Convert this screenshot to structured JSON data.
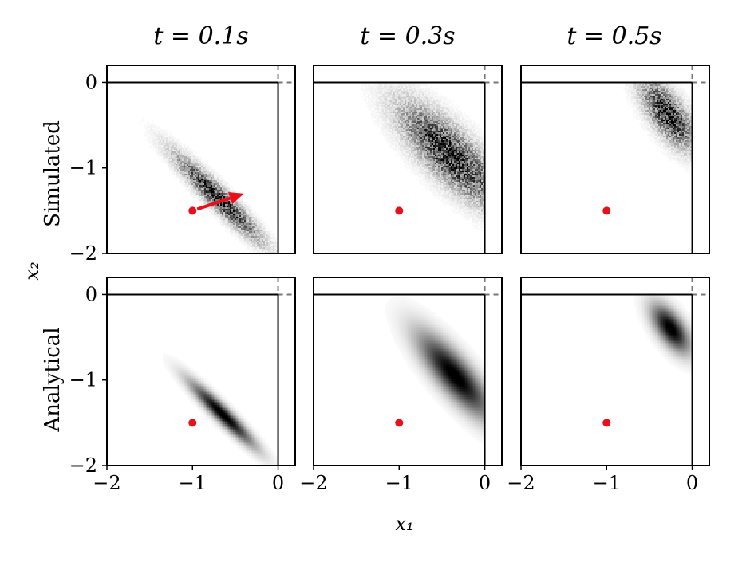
{
  "figure": {
    "row_labels": [
      "Simulated",
      "Analytical"
    ],
    "column_titles": [
      "t = 0.1s",
      "t = 0.3s",
      "t = 0.5s"
    ],
    "xlabel": "x₁",
    "ylabel": "x₂"
  },
  "chart_data": [
    {
      "type": "heatmap",
      "row": "Simulated",
      "title": "t = 0.1s",
      "xlim": [
        -2,
        0.2
      ],
      "ylim": [
        -2,
        0.2
      ],
      "x_ticks": [
        "−2",
        "−1",
        "0"
      ],
      "y_ticks": [
        "−2",
        "−1",
        "0"
      ],
      "marker": {
        "x": -1,
        "y": -1.5,
        "color": "#e8111b"
      },
      "arrow": {
        "from": [
          -1,
          -1.5
        ],
        "to": [
          -0.4,
          -1.3
        ],
        "color": "#e8111b"
      },
      "boundary": {
        "x": 0,
        "y": 0
      },
      "distribution": {
        "mean": [
          -0.7,
          -1.35
        ],
        "major_sigma": 0.45,
        "minor_sigma": 0.075,
        "angle_deg": -45,
        "noise": true
      }
    },
    {
      "type": "heatmap",
      "row": "Simulated",
      "title": "t = 0.3s",
      "xlim": [
        -2,
        0.2
      ],
      "ylim": [
        -2,
        0.2
      ],
      "x_ticks": [
        "−2",
        "−1",
        "0"
      ],
      "y_ticks": [
        "−2",
        "−1",
        "0"
      ],
      "marker": {
        "x": -1,
        "y": -1.5,
        "color": "#e8111b"
      },
      "boundary": {
        "x": 0,
        "y": 0
      },
      "distribution": {
        "mean": [
          -0.4,
          -0.85
        ],
        "major_sigma": 0.5,
        "minor_sigma": 0.17,
        "angle_deg": -45,
        "noise": true
      }
    },
    {
      "type": "heatmap",
      "row": "Simulated",
      "title": "t = 0.5s",
      "xlim": [
        -2,
        0.2
      ],
      "ylim": [
        -2,
        0.2
      ],
      "x_ticks": [
        "−2",
        "−1",
        "0"
      ],
      "y_ticks": [
        "−2",
        "−1",
        "0"
      ],
      "marker": {
        "x": -1,
        "y": -1.5,
        "color": "#e8111b"
      },
      "boundary": {
        "x": 0,
        "y": 0
      },
      "distribution": {
        "mean": [
          -0.28,
          -0.38
        ],
        "major_sigma": 0.3,
        "minor_sigma": 0.12,
        "angle_deg": -55,
        "noise": true
      }
    },
    {
      "type": "heatmap",
      "row": "Analytical",
      "title": "t = 0.1s",
      "xlim": [
        -2,
        0.2
      ],
      "ylim": [
        -2,
        0.2
      ],
      "x_ticks": [
        "−2",
        "−1",
        "0"
      ],
      "y_ticks": [
        "−2",
        "−1",
        "0"
      ],
      "marker": {
        "x": -1,
        "y": -1.5,
        "color": "#e8111b"
      },
      "boundary": {
        "x": 0,
        "y": 0
      },
      "distribution": {
        "mean": [
          -0.65,
          -1.4
        ],
        "major_sigma": 0.35,
        "minor_sigma": 0.06,
        "angle_deg": -45,
        "noise": false
      }
    },
    {
      "type": "heatmap",
      "row": "Analytical",
      "title": "t = 0.3s",
      "xlim": [
        -2,
        0.2
      ],
      "ylim": [
        -2,
        0.2
      ],
      "x_ticks": [
        "−2",
        "−1",
        "0"
      ],
      "y_ticks": [
        "−2",
        "−1",
        "0"
      ],
      "marker": {
        "x": -1,
        "y": -1.5,
        "color": "#e8111b"
      },
      "boundary": {
        "x": 0,
        "y": 0
      },
      "distribution": {
        "mean": [
          -0.35,
          -0.95
        ],
        "major_sigma": 0.42,
        "minor_sigma": 0.13,
        "angle_deg": -50,
        "noise": false
      }
    },
    {
      "type": "heatmap",
      "row": "Analytical",
      "title": "t = 0.5s",
      "xlim": [
        -2,
        0.2
      ],
      "ylim": [
        -2,
        0.2
      ],
      "x_ticks": [
        "−2",
        "−1",
        "0"
      ],
      "y_ticks": [
        "−2",
        "−1",
        "0"
      ],
      "marker": {
        "x": -1,
        "y": -1.5,
        "color": "#e8111b"
      },
      "boundary": {
        "x": 0,
        "y": 0
      },
      "distribution": {
        "mean": [
          -0.25,
          -0.4
        ],
        "major_sigma": 0.22,
        "minor_sigma": 0.1,
        "angle_deg": -55,
        "noise": false
      }
    }
  ]
}
